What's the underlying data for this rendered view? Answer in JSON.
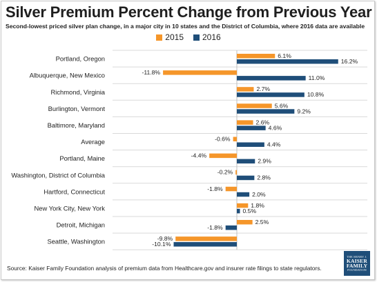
{
  "header": {
    "title": "Silver Premium Percent Change from Previous Year",
    "subtitle": "Second-lowest priced silver plan change, in a major city in 10 states and the District of Columbia, where 2016 data are available"
  },
  "footer": {
    "source": "Source: Kaiser Family Foundation analysis of premium data from Healthcare.gov and insurer rate filings to state regulators."
  },
  "logo": {
    "line1": "THE HENRY J.",
    "line2a": "KAISER",
    "line2b": "FAMILY",
    "line3": "FOUNDATION"
  },
  "colors": {
    "s2015": "#f5962a",
    "s2016": "#1f4e79",
    "grid": "#d9d9d9"
  },
  "chart_data": {
    "type": "bar",
    "orientation": "horizontal",
    "title": "Silver Premium Percent Change from Previous Year",
    "categories": [
      "Portland, Oregon",
      "Albuquerque, New Mexico",
      "Richmond, Virginia",
      "Burlington, Vermont",
      "Baltimore, Maryland",
      "Average",
      "Portland, Maine",
      "Washington, District of Columbia",
      "Hartford, Connecticut",
      "New York City, New York",
      "Detroit, Michigan",
      "Seattle, Washington"
    ],
    "series": [
      {
        "name": "2015",
        "values": [
          6.1,
          -11.8,
          2.7,
          5.6,
          2.6,
          -0.6,
          -4.4,
          -0.2,
          -1.8,
          1.8,
          2.5,
          -9.8
        ],
        "labels": [
          "6.1%",
          "-11.8%",
          "2.7%",
          "5.6%",
          "2.6%",
          "-0.6%",
          "-4.4%",
          "-0.2%",
          "-1.8%",
          "1.8%",
          "2.5%",
          "-9.8%"
        ]
      },
      {
        "name": "2016",
        "values": [
          16.2,
          11.0,
          10.8,
          9.2,
          4.6,
          4.4,
          2.9,
          2.8,
          2.0,
          0.5,
          -1.8,
          -10.1
        ],
        "labels": [
          "16.2%",
          "11.0%",
          "10.8%",
          "9.2%",
          "4.6%",
          "4.4%",
          "2.9%",
          "2.8%",
          "2.0%",
          "0.5%",
          "-1.8%",
          "-10.1%"
        ]
      }
    ],
    "xlim": [
      -15,
      18
    ],
    "legend_position": "top-center",
    "grid": "horizontal-row-separators"
  }
}
